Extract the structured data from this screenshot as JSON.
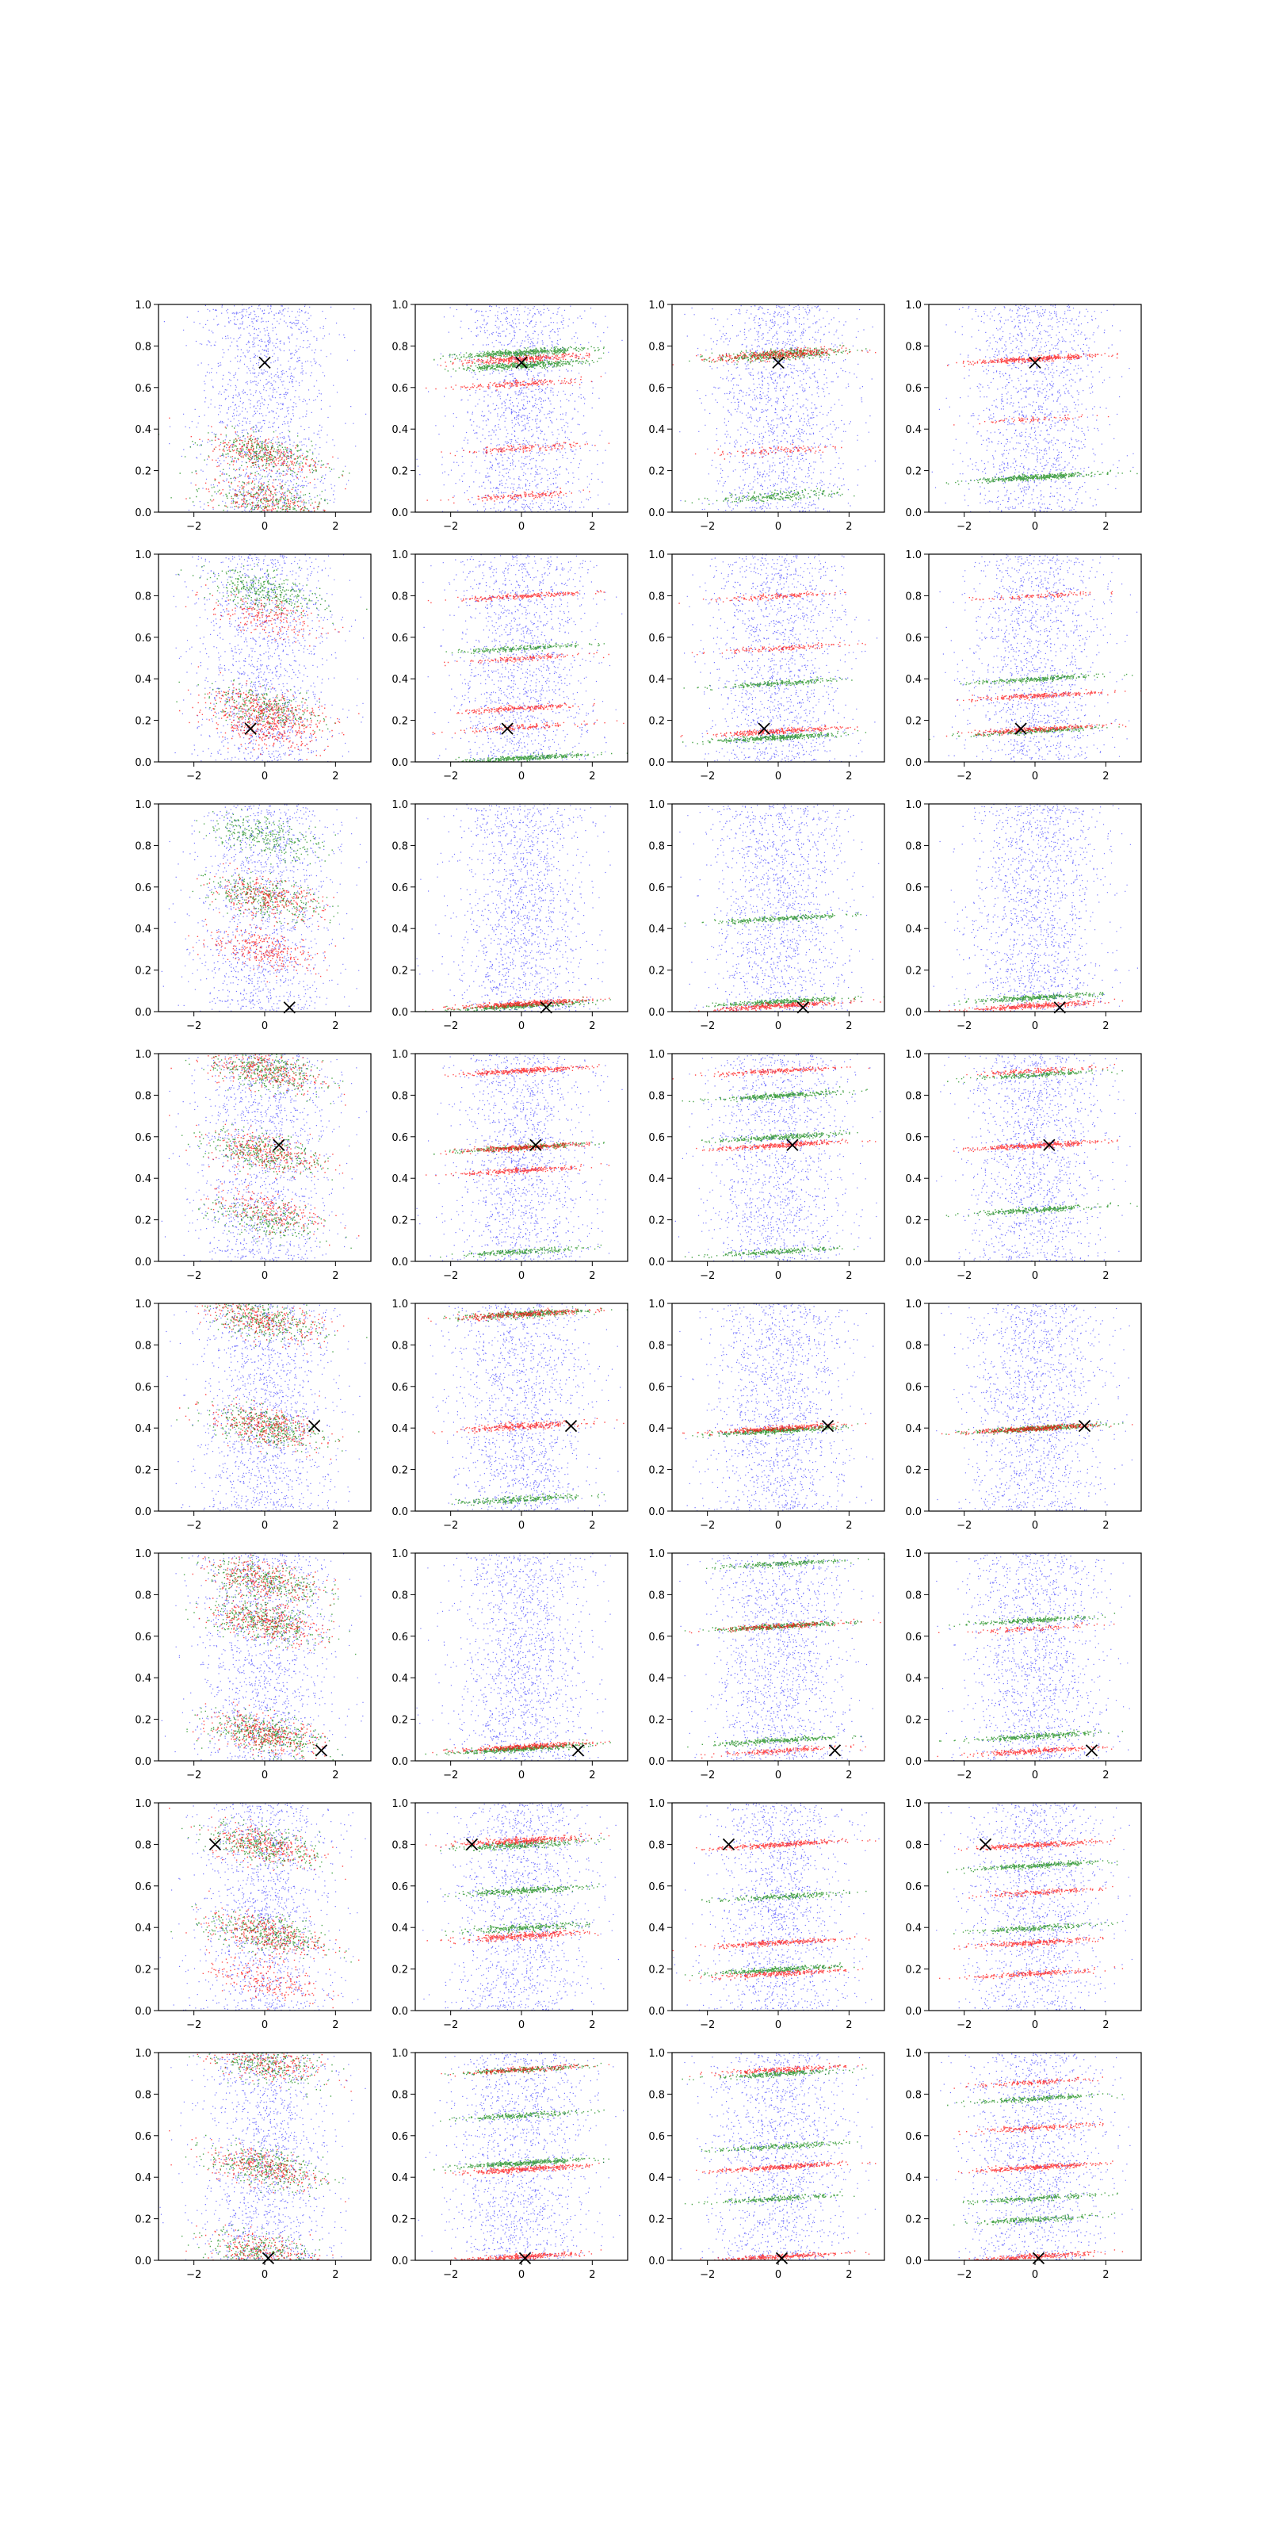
{
  "figure": {
    "layout": {
      "rows": 8,
      "cols": 4
    },
    "axis_style": {
      "xlim": [
        -3,
        3
      ],
      "ylim": [
        0,
        1
      ],
      "xticks": [
        -2,
        0,
        2
      ],
      "yticks": [
        0.0,
        0.2,
        0.4,
        0.6,
        0.8,
        1.0
      ],
      "grid": false
    }
  },
  "chart_data": {
    "type": "scatter",
    "colors": {
      "background": "#0000ff",
      "green": "#008000",
      "red": "#ff0000",
      "marker": "#000000"
    },
    "xtick_labels": [
      "−2",
      "0",
      "2"
    ],
    "ytick_labels": [
      "0.0",
      "0.2",
      "0.4",
      "0.6",
      "0.8",
      "1.0"
    ],
    "rows": [
      {
        "marker": [
          0.0,
          0.72
        ],
        "panels": [
          {
            "mode": "diffuse",
            "green": [
              [
                0.28,
                0.45
              ],
              [
                0.06,
                0.4
              ]
            ],
            "red": [
              [
                0.28,
                0.4
              ],
              [
                0.06,
                0.35
              ]
            ]
          },
          {
            "mode": "wide",
            "green": [
              [
                0.77,
                0.7
              ],
              [
                0.71,
                0.6
              ]
            ],
            "red": [
              [
                0.74,
                0.45
              ],
              [
                0.62,
                0.25
              ],
              [
                0.31,
                0.2
              ],
              [
                0.08,
                0.2
              ]
            ]
          },
          {
            "mode": "mid",
            "green": [
              [
                0.76,
                0.55
              ],
              [
                0.08,
                0.3
              ]
            ],
            "red": [
              [
                0.76,
                0.5
              ],
              [
                0.3,
                0.15
              ]
            ]
          },
          {
            "mode": "band",
            "green": [
              [
                0.17,
                0.6
              ]
            ],
            "red": [
              [
                0.74,
                0.55
              ],
              [
                0.45,
                0.1
              ]
            ]
          }
        ]
      },
      {
        "marker": [
          -0.4,
          0.16
        ],
        "panels": [
          {
            "mode": "diffuse",
            "green": [
              [
                0.82,
                0.5
              ],
              [
                0.26,
                0.4
              ]
            ],
            "red": [
              [
                0.26,
                0.45
              ],
              [
                0.16,
                0.4
              ],
              [
                0.7,
                0.3
              ]
            ]
          },
          {
            "mode": "narrow",
            "green": [
              [
                0.02,
                0.5
              ],
              [
                0.55,
                0.3
              ]
            ],
            "red": [
              [
                0.8,
                0.3
              ],
              [
                0.26,
                0.3
              ],
              [
                0.17,
                0.2
              ],
              [
                0.5,
                0.2
              ]
            ]
          },
          {
            "mode": "narrow",
            "green": [
              [
                0.12,
                0.55
              ],
              [
                0.38,
                0.3
              ]
            ],
            "red": [
              [
                0.15,
                0.4
              ],
              [
                0.8,
                0.2
              ],
              [
                0.55,
                0.2
              ]
            ]
          },
          {
            "mode": "narrow",
            "green": [
              [
                0.4,
                0.35
              ],
              [
                0.15,
                0.3
              ]
            ],
            "red": [
              [
                0.16,
                0.4
              ],
              [
                0.32,
                0.35
              ],
              [
                0.8,
                0.15
              ]
            ]
          }
        ]
      },
      {
        "marker": [
          0.7,
          0.02
        ],
        "panels": [
          {
            "mode": "diffuse",
            "green": [
              [
                0.55,
                0.45
              ],
              [
                0.85,
                0.4
              ]
            ],
            "red": [
              [
                0.55,
                0.4
              ],
              [
                0.3,
                0.4
              ]
            ]
          },
          {
            "mode": "band",
            "green": [
              [
                0.03,
                0.5
              ]
            ],
            "red": [
              [
                0.04,
                0.55
              ]
            ]
          },
          {
            "mode": "band",
            "green": [
              [
                0.05,
                0.45
              ],
              [
                0.45,
                0.35
              ]
            ],
            "red": [
              [
                0.03,
                0.5
              ]
            ]
          },
          {
            "mode": "band",
            "green": [
              [
                0.07,
                0.45
              ]
            ],
            "red": [
              [
                0.03,
                0.5
              ]
            ]
          }
        ]
      },
      {
        "marker": [
          0.4,
          0.56
        ],
        "panels": [
          {
            "mode": "diffuse",
            "green": [
              [
                0.92,
                0.5
              ],
              [
                0.53,
                0.45
              ],
              [
                0.2,
                0.35
              ]
            ],
            "red": [
              [
                0.92,
                0.4
              ],
              [
                0.53,
                0.4
              ],
              [
                0.25,
                0.3
              ]
            ]
          },
          {
            "mode": "narrow",
            "green": [
              [
                0.55,
                0.35
              ],
              [
                0.05,
                0.3
              ]
            ],
            "red": [
              [
                0.92,
                0.45
              ],
              [
                0.55,
                0.45
              ],
              [
                0.44,
                0.35
              ]
            ]
          },
          {
            "mode": "narrow",
            "green": [
              [
                0.8,
                0.45
              ],
              [
                0.6,
                0.4
              ],
              [
                0.05,
                0.3
              ]
            ],
            "red": [
              [
                0.56,
                0.45
              ],
              [
                0.92,
                0.3
              ]
            ]
          },
          {
            "mode": "narrow",
            "green": [
              [
                0.25,
                0.4
              ],
              [
                0.9,
                0.3
              ]
            ],
            "red": [
              [
                0.56,
                0.5
              ],
              [
                0.92,
                0.2
              ]
            ]
          }
        ]
      },
      {
        "marker": [
          1.4,
          0.41
        ],
        "panels": [
          {
            "mode": "diffuse",
            "green": [
              [
                0.92,
                0.45
              ],
              [
                0.41,
                0.5
              ]
            ],
            "red": [
              [
                0.92,
                0.4
              ],
              [
                0.41,
                0.45
              ]
            ]
          },
          {
            "mode": "wide",
            "green": [
              [
                0.95,
                0.45
              ],
              [
                0.06,
                0.35
              ]
            ],
            "red": [
              [
                0.95,
                0.4
              ],
              [
                0.41,
                0.4
              ]
            ]
          },
          {
            "mode": "band",
            "green": [
              [
                0.39,
                0.6
              ]
            ],
            "red": [
              [
                0.4,
                0.45
              ]
            ]
          },
          {
            "mode": "band",
            "green": [
              [
                0.4,
                0.55
              ]
            ],
            "red": [
              [
                0.4,
                0.5
              ]
            ]
          }
        ]
      },
      {
        "marker": [
          1.6,
          0.05
        ],
        "panels": [
          {
            "mode": "diffuse",
            "green": [
              [
                0.87,
                0.45
              ],
              [
                0.67,
                0.5
              ],
              [
                0.13,
                0.55
              ]
            ],
            "red": [
              [
                0.87,
                0.4
              ],
              [
                0.67,
                0.45
              ],
              [
                0.13,
                0.5
              ]
            ]
          },
          {
            "mode": "band",
            "green": [
              [
                0.06,
                0.6
              ]
            ],
            "red": [
              [
                0.07,
                0.45
              ]
            ]
          },
          {
            "mode": "band",
            "green": [
              [
                0.95,
                0.3
              ],
              [
                0.65,
                0.45
              ],
              [
                0.1,
                0.4
              ]
            ],
            "red": [
              [
                0.65,
                0.3
              ],
              [
                0.05,
                0.25
              ]
            ]
          },
          {
            "mode": "band",
            "green": [
              [
                0.68,
                0.35
              ],
              [
                0.12,
                0.4
              ]
            ],
            "red": [
              [
                0.05,
                0.35
              ],
              [
                0.64,
                0.15
              ]
            ]
          }
        ]
      },
      {
        "marker": [
          -1.4,
          0.8
        ],
        "panels": [
          {
            "mode": "diffuse",
            "green": [
              [
                0.8,
                0.45
              ],
              [
                0.37,
                0.5
              ]
            ],
            "red": [
              [
                0.8,
                0.4
              ],
              [
                0.37,
                0.45
              ],
              [
                0.15,
                0.3
              ]
            ]
          },
          {
            "mode": "wide",
            "green": [
              [
                0.8,
                0.4
              ],
              [
                0.58,
                0.4
              ],
              [
                0.4,
                0.35
              ]
            ],
            "red": [
              [
                0.82,
                0.45
              ],
              [
                0.36,
                0.45
              ]
            ]
          },
          {
            "mode": "narrow",
            "green": [
              [
                0.55,
                0.3
              ],
              [
                0.2,
                0.45
              ]
            ],
            "red": [
              [
                0.8,
                0.45
              ],
              [
                0.33,
                0.4
              ],
              [
                0.18,
                0.35
              ]
            ]
          },
          {
            "mode": "narrow",
            "green": [
              [
                0.7,
                0.45
              ],
              [
                0.4,
                0.3
              ]
            ],
            "red": [
              [
                0.8,
                0.4
              ],
              [
                0.57,
                0.25
              ],
              [
                0.33,
                0.35
              ],
              [
                0.18,
                0.3
              ]
            ]
          }
        ]
      },
      {
        "marker": [
          0.1,
          0.01
        ],
        "panels": [
          {
            "mode": "diffuse",
            "green": [
              [
                0.95,
                0.4
              ],
              [
                0.45,
                0.45
              ],
              [
                0.04,
                0.4
              ]
            ],
            "red": [
              [
                0.95,
                0.35
              ],
              [
                0.45,
                0.4
              ],
              [
                0.04,
                0.35
              ]
            ]
          },
          {
            "mode": "narrow",
            "green": [
              [
                0.47,
                0.55
              ],
              [
                0.7,
                0.3
              ],
              [
                0.92,
                0.3
              ]
            ],
            "red": [
              [
                0.44,
                0.5
              ],
              [
                0.02,
                0.45
              ],
              [
                0.92,
                0.25
              ]
            ]
          },
          {
            "mode": "narrow",
            "green": [
              [
                0.9,
                0.35
              ],
              [
                0.55,
                0.3
              ],
              [
                0.3,
                0.3
              ]
            ],
            "red": [
              [
                0.45,
                0.45
              ],
              [
                0.02,
                0.45
              ],
              [
                0.92,
                0.3
              ]
            ]
          },
          {
            "mode": "narrow",
            "green": [
              [
                0.78,
                0.35
              ],
              [
                0.3,
                0.3
              ],
              [
                0.2,
                0.3
              ]
            ],
            "red": [
              [
                0.45,
                0.45
              ],
              [
                0.64,
                0.25
              ],
              [
                0.86,
                0.2
              ],
              [
                0.02,
                0.4
              ]
            ]
          }
        ]
      }
    ]
  }
}
